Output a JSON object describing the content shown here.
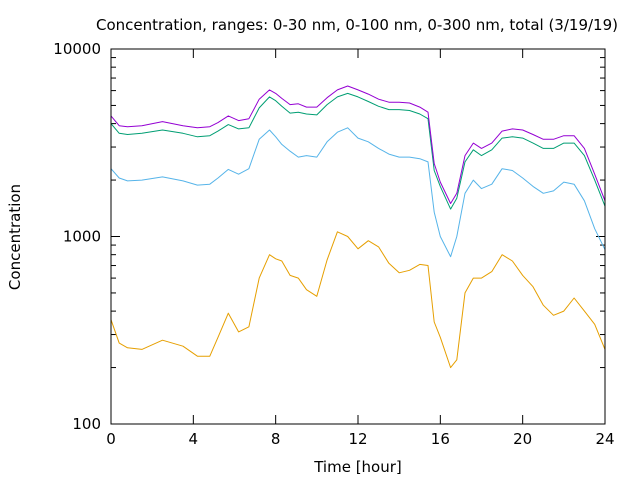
{
  "chart_data": {
    "type": "line",
    "title": "Concentration, ranges: 0-30 nm, 0-100 nm, 0-300 nm, total (3/19/19)",
    "xlabel": "Time [hour]",
    "ylabel": "Concentration",
    "xlim": [
      0,
      24
    ],
    "ylim": [
      100,
      10000
    ],
    "yscale": "log",
    "grid": false,
    "x_ticks": [
      {
        "value": 0,
        "label": "0"
      },
      {
        "value": 4,
        "label": "4"
      },
      {
        "value": 8,
        "label": "8"
      },
      {
        "value": 12,
        "label": "12"
      },
      {
        "value": 16,
        "label": "16"
      },
      {
        "value": 20,
        "label": "20"
      },
      {
        "value": 24,
        "label": "24"
      }
    ],
    "y_ticks": [
      {
        "value": 100,
        "label": "100"
      },
      {
        "value": 1000,
        "label": "1000"
      },
      {
        "value": 10000,
        "label": "10000"
      }
    ],
    "series": [
      {
        "color": "#e69f00",
        "x": [
          0,
          0.4,
          0.8,
          1.5,
          2.5,
          3.5,
          4.2,
          4.8,
          5.2,
          5.7,
          6.2,
          6.7,
          7.2,
          7.7,
          8.0,
          8.3,
          8.7,
          9.1,
          9.5,
          10.0,
          10.5,
          11.0,
          11.5,
          12.0,
          12.5,
          13.0,
          13.5,
          14.0,
          14.5,
          15.0,
          15.4,
          15.7,
          16.0,
          16.5,
          16.8,
          17.2,
          17.6,
          18.0,
          18.5,
          19.0,
          19.5,
          20.0,
          20.5,
          21.0,
          21.5,
          22.0,
          22.5,
          23.0,
          23.5,
          24.0
        ],
        "values": [
          360,
          270,
          255,
          250,
          280,
          260,
          230,
          230,
          290,
          390,
          310,
          330,
          600,
          800,
          760,
          740,
          620,
          600,
          520,
          480,
          750,
          1060,
          1000,
          860,
          950,
          880,
          720,
          640,
          660,
          710,
          700,
          350,
          290,
          200,
          220,
          500,
          600,
          600,
          650,
          800,
          740,
          620,
          540,
          430,
          380,
          400,
          470,
          400,
          340,
          250
        ]
      },
      {
        "color": "#56b4e9",
        "x": [
          0,
          0.4,
          0.8,
          1.5,
          2.5,
          3.5,
          4.2,
          4.8,
          5.2,
          5.7,
          6.2,
          6.7,
          7.2,
          7.7,
          8.0,
          8.3,
          8.7,
          9.1,
          9.5,
          10.0,
          10.5,
          11.0,
          11.5,
          12.0,
          12.5,
          13.0,
          13.5,
          14.0,
          14.5,
          15.0,
          15.4,
          15.7,
          16.0,
          16.5,
          16.8,
          17.2,
          17.6,
          18.0,
          18.5,
          19.0,
          19.5,
          20.0,
          20.5,
          21.0,
          21.5,
          22.0,
          22.5,
          23.0,
          23.5,
          24.0
        ],
        "values": [
          2300,
          2050,
          1980,
          2000,
          2080,
          1980,
          1880,
          1900,
          2050,
          2280,
          2150,
          2300,
          3300,
          3700,
          3400,
          3100,
          2850,
          2650,
          2700,
          2650,
          3200,
          3600,
          3800,
          3350,
          3200,
          2950,
          2750,
          2650,
          2650,
          2600,
          2500,
          1350,
          1000,
          780,
          1000,
          1700,
          2000,
          1800,
          1900,
          2300,
          2250,
          2050,
          1850,
          1700,
          1750,
          1950,
          1900,
          1550,
          1100,
          850
        ]
      },
      {
        "color": "#009e73",
        "x": [
          0,
          0.4,
          0.8,
          1.5,
          2.5,
          3.5,
          4.2,
          4.8,
          5.2,
          5.7,
          6.2,
          6.7,
          7.2,
          7.7,
          8.0,
          8.3,
          8.7,
          9.1,
          9.5,
          10.0,
          10.5,
          11.0,
          11.5,
          12.0,
          12.5,
          13.0,
          13.5,
          14.0,
          14.5,
          15.0,
          15.4,
          15.7,
          16.0,
          16.5,
          16.8,
          17.2,
          17.6,
          18.0,
          18.5,
          19.0,
          19.5,
          20.0,
          20.5,
          21.0,
          21.5,
          22.0,
          22.5,
          23.0,
          23.5,
          24.0
        ],
        "values": [
          4000,
          3550,
          3500,
          3550,
          3700,
          3550,
          3400,
          3450,
          3650,
          3950,
          3750,
          3800,
          4850,
          5550,
          5300,
          4950,
          4550,
          4600,
          4500,
          4450,
          5050,
          5550,
          5800,
          5550,
          5250,
          4950,
          4750,
          4750,
          4700,
          4500,
          4250,
          2250,
          1850,
          1400,
          1600,
          2500,
          2900,
          2700,
          2900,
          3350,
          3400,
          3350,
          3150,
          2950,
          2950,
          3150,
          3150,
          2700,
          2000,
          1450
        ]
      },
      {
        "color": "#9400d3",
        "x": [
          0,
          0.4,
          0.8,
          1.5,
          2.5,
          3.5,
          4.2,
          4.8,
          5.2,
          5.7,
          6.2,
          6.7,
          7.2,
          7.7,
          8.0,
          8.3,
          8.7,
          9.1,
          9.5,
          10.0,
          10.5,
          11.0,
          11.5,
          12.0,
          12.5,
          13.0,
          13.5,
          14.0,
          14.5,
          15.0,
          15.4,
          15.7,
          16.0,
          16.5,
          16.8,
          17.2,
          17.6,
          18.0,
          18.5,
          19.0,
          19.5,
          20.0,
          20.5,
          21.0,
          21.5,
          22.0,
          22.5,
          23.0,
          23.5,
          24.0
        ],
        "values": [
          4400,
          3900,
          3850,
          3900,
          4100,
          3900,
          3800,
          3850,
          4050,
          4400,
          4150,
          4250,
          5400,
          6050,
          5800,
          5450,
          5050,
          5100,
          4900,
          4900,
          5500,
          6050,
          6350,
          6050,
          5750,
          5400,
          5200,
          5200,
          5150,
          4900,
          4600,
          2450,
          1950,
          1500,
          1700,
          2700,
          3150,
          2950,
          3150,
          3650,
          3750,
          3700,
          3500,
          3300,
          3300,
          3450,
          3450,
          2950,
          2150,
          1550
        ]
      }
    ]
  }
}
